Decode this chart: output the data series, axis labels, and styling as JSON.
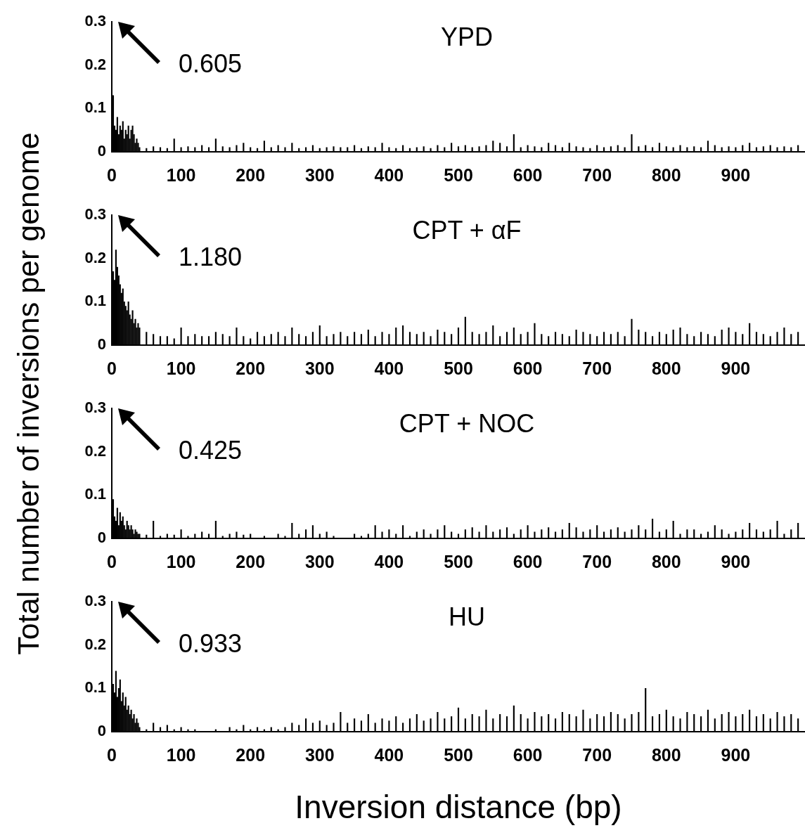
{
  "chart_data": [
    {
      "type": "bar",
      "title": "YPD",
      "ylabel": "Total number of inversions per genome",
      "annotations": [
        "0.605"
      ],
      "color": "#000000",
      "grid": false,
      "x": [
        2,
        4,
        6,
        8,
        10,
        12,
        14,
        16,
        18,
        20,
        22,
        24,
        26,
        28,
        30,
        32,
        34,
        36,
        38,
        40,
        50,
        60,
        70,
        80,
        90,
        100,
        110,
        120,
        130,
        140,
        150,
        160,
        170,
        180,
        190,
        200,
        210,
        220,
        230,
        240,
        250,
        260,
        270,
        280,
        290,
        300,
        310,
        320,
        330,
        340,
        350,
        360,
        370,
        380,
        390,
        400,
        410,
        420,
        430,
        440,
        450,
        460,
        470,
        480,
        490,
        500,
        510,
        520,
        530,
        540,
        550,
        560,
        570,
        580,
        590,
        600,
        610,
        620,
        630,
        640,
        650,
        660,
        670,
        680,
        690,
        700,
        710,
        720,
        730,
        740,
        750,
        760,
        770,
        780,
        790,
        800,
        810,
        820,
        830,
        840,
        850,
        860,
        870,
        880,
        890,
        900,
        910,
        920,
        930,
        940,
        950,
        960,
        970,
        980,
        990
      ],
      "values": [
        0.13,
        0.06,
        0.05,
        0.08,
        0.04,
        0.06,
        0.05,
        0.07,
        0.03,
        0.05,
        0.04,
        0.06,
        0.03,
        0.05,
        0.06,
        0.04,
        0.02,
        0.03,
        0.02,
        0.01,
        0.008,
        0.012,
        0.01,
        0.008,
        0.03,
        0.01,
        0.012,
        0.01,
        0.015,
        0.01,
        0.03,
        0.012,
        0.01,
        0.015,
        0.02,
        0.01,
        0.008,
        0.025,
        0.01,
        0.015,
        0.01,
        0.02,
        0.008,
        0.01,
        0.015,
        0.008,
        0.01,
        0.012,
        0.01,
        0.01,
        0.015,
        0.008,
        0.012,
        0.01,
        0.02,
        0.01,
        0.008,
        0.015,
        0.008,
        0.01,
        0.012,
        0.008,
        0.015,
        0.01,
        0.02,
        0.012,
        0.015,
        0.01,
        0.012,
        0.015,
        0.025,
        0.02,
        0.012,
        0.04,
        0.01,
        0.015,
        0.012,
        0.01,
        0.02,
        0.015,
        0.01,
        0.02,
        0.012,
        0.01,
        0.008,
        0.015,
        0.01,
        0.012,
        0.015,
        0.01,
        0.04,
        0.012,
        0.015,
        0.01,
        0.02,
        0.012,
        0.01,
        0.015,
        0.01,
        0.012,
        0.01,
        0.025,
        0.015,
        0.01,
        0.012,
        0.01,
        0.015,
        0.02,
        0.01,
        0.012,
        0.015,
        0.01,
        0.012,
        0.01,
        0.015
      ],
      "xlim": [
        0,
        1000
      ],
      "xticks": [
        0,
        100,
        200,
        300,
        400,
        500,
        600,
        700,
        800,
        900
      ],
      "ylim": [
        0,
        0.3
      ],
      "yticks": [
        0,
        0.1,
        0.2,
        0.3
      ]
    },
    {
      "type": "bar",
      "title": "CPT + αF",
      "annotations": [
        "1.180"
      ],
      "color": "#000000",
      "grid": false,
      "x": [
        2,
        4,
        6,
        8,
        10,
        12,
        14,
        16,
        18,
        20,
        22,
        24,
        26,
        28,
        30,
        32,
        34,
        36,
        38,
        40,
        50,
        60,
        70,
        80,
        90,
        100,
        110,
        120,
        130,
        140,
        150,
        160,
        170,
        180,
        190,
        200,
        210,
        220,
        230,
        240,
        250,
        260,
        270,
        280,
        290,
        300,
        310,
        320,
        330,
        340,
        350,
        360,
        370,
        380,
        390,
        400,
        410,
        420,
        430,
        440,
        450,
        460,
        470,
        480,
        490,
        500,
        510,
        520,
        530,
        540,
        550,
        560,
        570,
        580,
        590,
        600,
        610,
        620,
        630,
        640,
        650,
        660,
        670,
        680,
        690,
        700,
        710,
        720,
        730,
        740,
        750,
        760,
        770,
        780,
        790,
        800,
        810,
        820,
        830,
        840,
        850,
        860,
        870,
        880,
        890,
        900,
        910,
        920,
        930,
        940,
        950,
        960,
        970,
        980,
        990
      ],
      "values": [
        0.17,
        0.15,
        0.22,
        0.18,
        0.16,
        0.14,
        0.12,
        0.13,
        0.1,
        0.09,
        0.08,
        0.1,
        0.07,
        0.06,
        0.08,
        0.05,
        0.06,
        0.04,
        0.05,
        0.04,
        0.03,
        0.025,
        0.02,
        0.02,
        0.015,
        0.04,
        0.02,
        0.025,
        0.02,
        0.02,
        0.03,
        0.025,
        0.02,
        0.04,
        0.02,
        0.015,
        0.03,
        0.02,
        0.025,
        0.03,
        0.02,
        0.04,
        0.025,
        0.02,
        0.03,
        0.045,
        0.02,
        0.025,
        0.03,
        0.02,
        0.03,
        0.025,
        0.035,
        0.02,
        0.03,
        0.025,
        0.04,
        0.045,
        0.03,
        0.025,
        0.03,
        0.02,
        0.035,
        0.03,
        0.025,
        0.04,
        0.065,
        0.03,
        0.025,
        0.03,
        0.045,
        0.02,
        0.03,
        0.04,
        0.025,
        0.03,
        0.05,
        0.025,
        0.02,
        0.03,
        0.025,
        0.02,
        0.035,
        0.03,
        0.025,
        0.02,
        0.03,
        0.025,
        0.03,
        0.02,
        0.06,
        0.035,
        0.03,
        0.02,
        0.03,
        0.025,
        0.035,
        0.04,
        0.025,
        0.02,
        0.03,
        0.025,
        0.02,
        0.035,
        0.04,
        0.03,
        0.025,
        0.05,
        0.03,
        0.025,
        0.02,
        0.03,
        0.04,
        0.025,
        0.03
      ],
      "xlim": [
        0,
        1000
      ],
      "xticks": [
        0,
        100,
        200,
        300,
        400,
        500,
        600,
        700,
        800,
        900
      ],
      "ylim": [
        0,
        0.3
      ],
      "yticks": [
        0,
        0.1,
        0.2,
        0.3
      ]
    },
    {
      "type": "bar",
      "title": "CPT + NOC",
      "annotations": [
        "0.425"
      ],
      "color": "#000000",
      "grid": false,
      "x": [
        2,
        4,
        6,
        8,
        10,
        12,
        14,
        16,
        18,
        20,
        22,
        24,
        26,
        28,
        30,
        32,
        34,
        36,
        38,
        40,
        50,
        60,
        70,
        80,
        90,
        100,
        110,
        120,
        130,
        140,
        150,
        160,
        170,
        180,
        190,
        200,
        210,
        220,
        230,
        240,
        250,
        260,
        270,
        280,
        290,
        300,
        310,
        320,
        330,
        340,
        350,
        360,
        370,
        380,
        390,
        400,
        410,
        420,
        430,
        440,
        450,
        460,
        470,
        480,
        490,
        500,
        510,
        520,
        530,
        540,
        550,
        560,
        570,
        580,
        590,
        600,
        610,
        620,
        630,
        640,
        650,
        660,
        670,
        680,
        690,
        700,
        710,
        720,
        730,
        740,
        750,
        760,
        770,
        780,
        790,
        800,
        810,
        820,
        830,
        840,
        850,
        860,
        870,
        880,
        890,
        900,
        910,
        920,
        930,
        940,
        950,
        960,
        970,
        980,
        990
      ],
      "values": [
        0.09,
        0.05,
        0.04,
        0.07,
        0.03,
        0.06,
        0.04,
        0.05,
        0.03,
        0.02,
        0.04,
        0.03,
        0.02,
        0.03,
        0.02,
        0.01,
        0.02,
        0.015,
        0.01,
        0.01,
        0.008,
        0.04,
        0.005,
        0.01,
        0.008,
        0.02,
        0.005,
        0.01,
        0.015,
        0.01,
        0.04,
        0.005,
        0.01,
        0.015,
        0.008,
        0.01,
        0,
        0.005,
        0,
        0.01,
        0.005,
        0.035,
        0.01,
        0.02,
        0.03,
        0.01,
        0.015,
        0.005,
        0,
        0,
        0.01,
        0.005,
        0.01,
        0.03,
        0.015,
        0.02,
        0.01,
        0.03,
        0.005,
        0.015,
        0.02,
        0.01,
        0.02,
        0.03,
        0.015,
        0.01,
        0.02,
        0.025,
        0.015,
        0.03,
        0.015,
        0.02,
        0.025,
        0.01,
        0.02,
        0.03,
        0.015,
        0.02,
        0.025,
        0.015,
        0.02,
        0.035,
        0.025,
        0.015,
        0.02,
        0.03,
        0.015,
        0.02,
        0.025,
        0.015,
        0.02,
        0.03,
        0.02,
        0.045,
        0.015,
        0.02,
        0.04,
        0.01,
        0.02,
        0.02,
        0.01,
        0.015,
        0.03,
        0.02,
        0.01,
        0.015,
        0.02,
        0.035,
        0.02,
        0.015,
        0.02,
        0.04,
        0.01,
        0.02,
        0.035
      ],
      "xlim": [
        0,
        1000
      ],
      "xticks": [
        0,
        100,
        200,
        300,
        400,
        500,
        600,
        700,
        800,
        900
      ],
      "ylim": [
        0,
        0.3
      ],
      "yticks": [
        0,
        0.1,
        0.2,
        0.3
      ]
    },
    {
      "type": "bar",
      "title": "HU",
      "xlabel": "Inversion distance (bp)",
      "annotations": [
        "0.933"
      ],
      "color": "#000000",
      "grid": false,
      "x": [
        2,
        4,
        6,
        8,
        10,
        12,
        14,
        16,
        18,
        20,
        22,
        24,
        26,
        28,
        30,
        32,
        34,
        36,
        38,
        40,
        50,
        60,
        70,
        80,
        90,
        100,
        110,
        120,
        130,
        140,
        150,
        160,
        170,
        180,
        190,
        200,
        210,
        220,
        230,
        240,
        250,
        260,
        270,
        280,
        290,
        300,
        310,
        320,
        330,
        340,
        350,
        360,
        370,
        380,
        390,
        400,
        410,
        420,
        430,
        440,
        450,
        460,
        470,
        480,
        490,
        500,
        510,
        520,
        530,
        540,
        550,
        560,
        570,
        580,
        590,
        600,
        610,
        620,
        630,
        640,
        650,
        660,
        670,
        680,
        690,
        700,
        710,
        720,
        730,
        740,
        750,
        760,
        770,
        780,
        790,
        800,
        810,
        820,
        830,
        840,
        850,
        860,
        870,
        880,
        890,
        900,
        910,
        920,
        930,
        940,
        950,
        960,
        970,
        980,
        990
      ],
      "values": [
        0.11,
        0.09,
        0.14,
        0.08,
        0.1,
        0.12,
        0.07,
        0.09,
        0.06,
        0.08,
        0.05,
        0.06,
        0.04,
        0.05,
        0.03,
        0.04,
        0.02,
        0.03,
        0.02,
        0.01,
        0.005,
        0.02,
        0.01,
        0.015,
        0.005,
        0.01,
        0.005,
        0.005,
        0,
        0,
        0.005,
        0,
        0.01,
        0.005,
        0.015,
        0.005,
        0.01,
        0.005,
        0.01,
        0.005,
        0.01,
        0.02,
        0.015,
        0.03,
        0.02,
        0.025,
        0.015,
        0.02,
        0.045,
        0.02,
        0.03,
        0.025,
        0.04,
        0.02,
        0.03,
        0.025,
        0.035,
        0.02,
        0.03,
        0.04,
        0.025,
        0.03,
        0.045,
        0.03,
        0.035,
        0.055,
        0.03,
        0.04,
        0.035,
        0.05,
        0.03,
        0.04,
        0.035,
        0.06,
        0.04,
        0.03,
        0.045,
        0.035,
        0.04,
        0.03,
        0.045,
        0.04,
        0.035,
        0.05,
        0.03,
        0.04,
        0.035,
        0.045,
        0.04,
        0.03,
        0.04,
        0.045,
        0.1,
        0.035,
        0.04,
        0.05,
        0.035,
        0.03,
        0.045,
        0.04,
        0.035,
        0.05,
        0.03,
        0.04,
        0.045,
        0.035,
        0.04,
        0.05,
        0.035,
        0.04,
        0.03,
        0.045,
        0.035,
        0.04,
        0.03
      ],
      "xlim": [
        0,
        1000
      ],
      "xticks": [
        0,
        100,
        200,
        300,
        400,
        500,
        600,
        700,
        800,
        900
      ],
      "ylim": [
        0,
        0.3
      ],
      "yticks": [
        0,
        0.1,
        0.2,
        0.3
      ]
    }
  ]
}
